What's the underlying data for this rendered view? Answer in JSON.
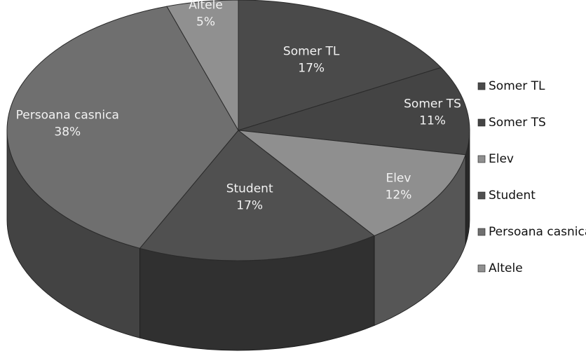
{
  "chart_data": {
    "type": "pie",
    "title": "",
    "three_d": true,
    "legend_position": "right",
    "slices": [
      {
        "name": "Somer TL",
        "value": 17,
        "label": "17%",
        "color": "#4a4a4a"
      },
      {
        "name": "Somer TS",
        "value": 11,
        "label": "11%",
        "color": "#444444"
      },
      {
        "name": "Elev",
        "value": 12,
        "label": "12%",
        "color": "#8f8f8f"
      },
      {
        "name": "Student",
        "value": 17,
        "label": "17%",
        "color": "#505050"
      },
      {
        "name": "Persoana casnica",
        "value": 38,
        "label": "38%",
        "color": "#6f6f6f"
      },
      {
        "name": "Altele",
        "value": 5,
        "label": "5%",
        "color": "#909090"
      }
    ]
  }
}
